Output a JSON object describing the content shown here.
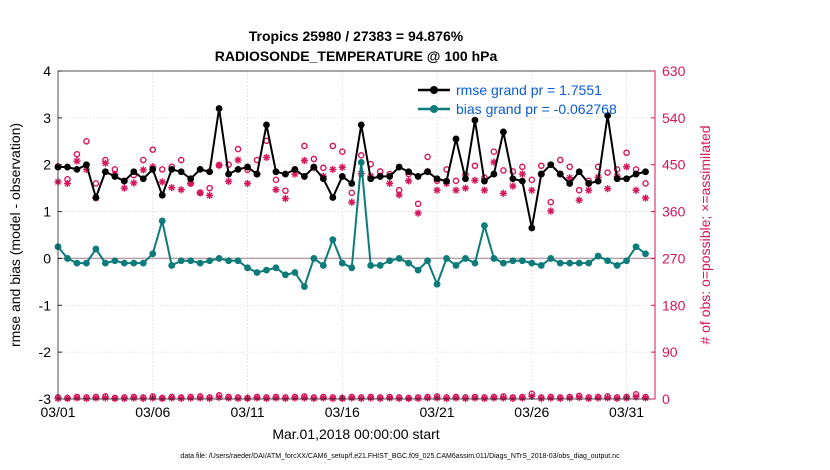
{
  "chart_data": {
    "type": "line",
    "title": "Tropics 25980 / 27383 = 94.876%",
    "subtitle": "RADIOSONDE_TEMPERATURE @ 100 hPa",
    "xlabel": "Mar.01,2018 00:00:00 start",
    "ylabel": "rmse and bias (model - observation)",
    "y2label": "# of obs: o=possible; ×=assimilated",
    "footer": "data file: /Users/raeder/DAI/ATM_forcXX/CAM6_setup/f.e21.FHIST_BGC.f09_025.CAM6assim.011/Diags_NTrS_2018-03/obs_diag_output.nc",
    "xlim": [
      0,
      31.5
    ],
    "ylim": [
      -3,
      4
    ],
    "y2lim": [
      0,
      630
    ],
    "x_ticks": [
      0,
      5,
      10,
      15,
      20,
      25,
      30
    ],
    "x_tick_labels": [
      "03/01",
      "03/06",
      "03/11",
      "03/16",
      "03/21",
      "03/26",
      "03/31"
    ],
    "y_ticks": [
      -3,
      -2,
      -1,
      0,
      1,
      2,
      3,
      4
    ],
    "y2_ticks": [
      0,
      90,
      180,
      270,
      360,
      450,
      540,
      630
    ],
    "grid": true,
    "colors": {
      "rmse": "#000000",
      "bias": "#0e7b7b",
      "obs": "#d5155c",
      "legend_text": "#0a5bd6"
    },
    "x": [
      0,
      0.5,
      1,
      1.5,
      2,
      2.5,
      3,
      3.5,
      4,
      4.5,
      5,
      5.5,
      6,
      6.5,
      7,
      7.5,
      8,
      8.5,
      9,
      9.5,
      10,
      10.5,
      11,
      11.5,
      12,
      12.5,
      13,
      13.5,
      14,
      14.5,
      15,
      15.5,
      16,
      16.5,
      17,
      17.5,
      18,
      18.5,
      19,
      19.5,
      20,
      20.5,
      21,
      21.5,
      22,
      22.5,
      23,
      23.5,
      24,
      24.5,
      25,
      25.5,
      26,
      26.5,
      27,
      27.5,
      28,
      28.5,
      29,
      29.5,
      30,
      30.5,
      31
    ],
    "series": [
      {
        "name": "rmse grand pr = 1.7551",
        "values": [
          1.95,
          1.95,
          1.9,
          2.0,
          1.3,
          1.85,
          1.75,
          1.65,
          1.85,
          1.7,
          1.9,
          1.35,
          1.9,
          1.85,
          1.7,
          1.9,
          1.85,
          3.2,
          1.8,
          1.9,
          1.95,
          1.8,
          2.85,
          1.85,
          1.8,
          1.9,
          1.75,
          1.95,
          1.7,
          1.3,
          1.75,
          1.6,
          2.85,
          1.7,
          1.75,
          1.75,
          1.95,
          1.85,
          1.75,
          1.85,
          1.7,
          1.65,
          2.55,
          1.7,
          2.95,
          1.65,
          1.8,
          2.7,
          1.7,
          1.65,
          0.65,
          1.8,
          2.0,
          1.8,
          1.6,
          1.85,
          1.6,
          1.65,
          3.05,
          1.7,
          1.7,
          1.8,
          1.85
        ]
      },
      {
        "name": "bias grand pr = -0.062768",
        "values": [
          0.25,
          0.0,
          -0.1,
          -0.1,
          0.2,
          -0.1,
          -0.05,
          -0.1,
          -0.1,
          -0.1,
          0.1,
          0.8,
          -0.15,
          -0.05,
          -0.05,
          -0.1,
          -0.05,
          0.0,
          -0.05,
          -0.05,
          -0.2,
          -0.3,
          -0.25,
          -0.2,
          -0.35,
          -0.3,
          -0.6,
          0.0,
          -0.15,
          0.4,
          -0.1,
          -0.2,
          2.05,
          -0.15,
          -0.15,
          -0.05,
          0.0,
          -0.1,
          -0.25,
          -0.05,
          -0.55,
          0.0,
          -0.15,
          0.0,
          -0.1,
          0.7,
          0.0,
          -0.1,
          -0.05,
          -0.05,
          -0.1,
          -0.15,
          0.0,
          -0.1,
          -0.1,
          -0.1,
          -0.1,
          0.05,
          -0.05,
          -0.15,
          -0.05,
          0.25,
          0.1
        ]
      }
    ],
    "obs_possible": [
      447,
      422,
      470,
      495,
      414,
      459,
      441,
      419,
      430,
      459,
      479,
      441,
      446,
      459,
      414,
      396,
      405,
      449,
      450,
      480,
      440,
      459,
      496,
      421,
      400,
      440,
      486,
      461,
      444,
      486,
      475,
      396,
      468,
      451,
      437,
      432,
      401,
      432,
      375,
      465,
      419,
      441,
      419,
      431,
      448,
      425,
      475,
      439,
      437,
      446,
      421,
      448,
      378,
      459,
      446,
      401,
      419,
      446,
      435,
      441,
      473,
      441,
      414
    ],
    "obs_assimilated": [
      417,
      414,
      457,
      441,
      386,
      453,
      432,
      405,
      415,
      440,
      446,
      417,
      406,
      402,
      414,
      396,
      391,
      449,
      418,
      459,
      414,
      432,
      464,
      402,
      385,
      432,
      458,
      444,
      428,
      441,
      445,
      378,
      433,
      428,
      428,
      414,
      392,
      419,
      357,
      437,
      401,
      414,
      401,
      405,
      420,
      401,
      455,
      395,
      409,
      432,
      401,
      432,
      361,
      432,
      425,
      382,
      401,
      426,
      404,
      428,
      446,
      401,
      386
    ],
    "obs_bottom_possible": [
      3,
      2,
      4,
      3,
      4,
      5,
      2,
      3,
      4,
      3,
      5,
      2,
      4,
      3,
      4,
      5,
      3,
      7,
      4,
      3,
      2,
      4,
      3,
      4,
      3,
      4,
      5,
      3,
      4,
      3,
      2,
      4,
      3,
      4,
      3,
      4,
      3,
      2,
      3,
      4,
      5,
      3,
      4,
      3,
      4,
      3,
      4,
      5,
      3,
      4,
      10,
      3,
      4,
      3,
      4,
      6,
      3,
      4,
      5,
      3,
      4,
      9,
      4
    ],
    "obs_bottom_assimilated": [
      1,
      1,
      2,
      1,
      2,
      2,
      1,
      1,
      2,
      1,
      2,
      1,
      2,
      1,
      2,
      2,
      1,
      3,
      2,
      1,
      1,
      2,
      1,
      2,
      1,
      2,
      2,
      1,
      2,
      1,
      1,
      2,
      1,
      2,
      1,
      2,
      1,
      1,
      1,
      2,
      2,
      1,
      2,
      1,
      2,
      1,
      2,
      2,
      1,
      2,
      5,
      1,
      2,
      1,
      2,
      3,
      1,
      2,
      2,
      1,
      2,
      4,
      2
    ]
  }
}
